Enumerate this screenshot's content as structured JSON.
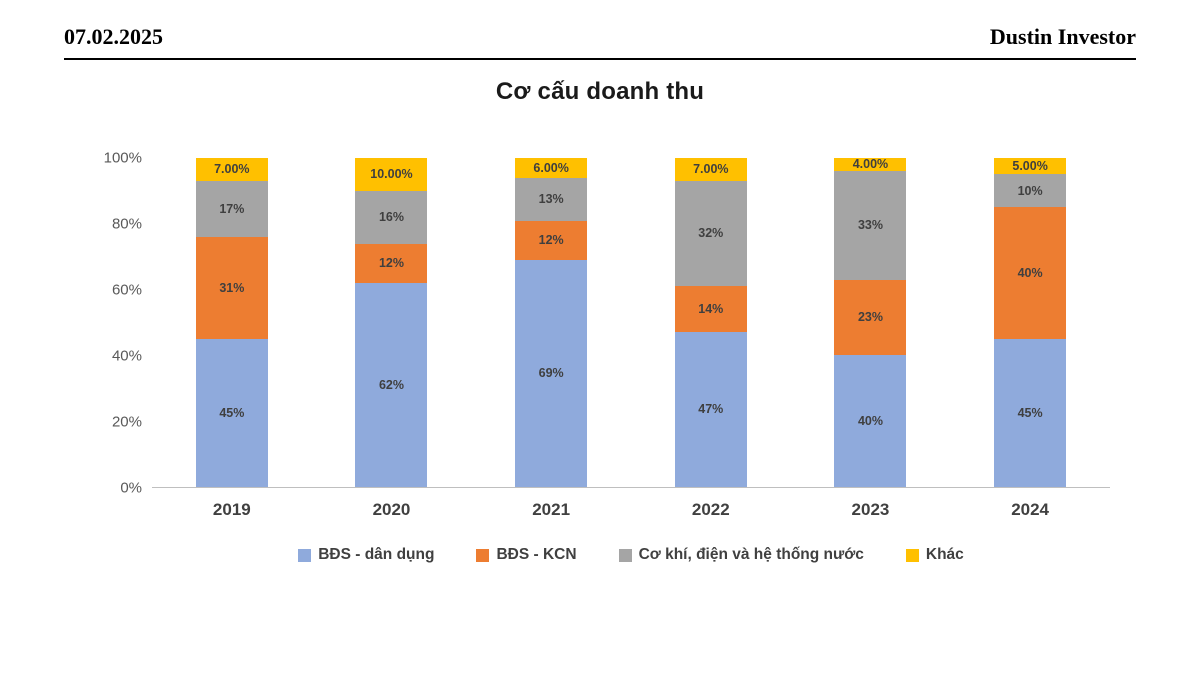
{
  "header": {
    "date": "07.02.2025",
    "author": "Dustin Investor"
  },
  "title": "Cơ cấu doanh thu",
  "chart_data": {
    "type": "bar",
    "stacked": true,
    "percent_stacked": true,
    "title": "Cơ cấu doanh thu",
    "categories": [
      "2019",
      "2020",
      "2021",
      "2022",
      "2023",
      "2024"
    ],
    "series": [
      {
        "name": "BĐS - dân dụng",
        "color": "#8FAADC",
        "values": [
          45,
          62,
          69,
          47,
          40,
          45
        ],
        "labels": [
          "45%",
          "62%",
          "69%",
          "47%",
          "40%",
          "45%"
        ]
      },
      {
        "name": "BĐS - KCN",
        "color": "#ED7D31",
        "values": [
          31,
          12,
          12,
          14,
          23,
          40
        ],
        "labels": [
          "31%",
          "12%",
          "12%",
          "14%",
          "23%",
          "40%"
        ]
      },
      {
        "name": "Cơ khí, điện và hệ thống nước",
        "color": "#A5A5A5",
        "values": [
          17,
          16,
          13,
          32,
          33,
          10
        ],
        "labels": [
          "17%",
          "16%",
          "13%",
          "32%",
          "33%",
          "10%"
        ]
      },
      {
        "name": "Khác",
        "color": "#FFC000",
        "values": [
          7,
          10,
          6,
          7,
          4,
          5
        ],
        "labels": [
          "7.00%",
          "10.00%",
          "6.00%",
          "7.00%",
          "4.00%",
          "5.00%"
        ]
      }
    ],
    "y_ticks": [
      "0%",
      "20%",
      "40%",
      "60%",
      "80%",
      "100%"
    ],
    "ylim": [
      0,
      100
    ],
    "grid": false,
    "legend_position": "bottom"
  }
}
